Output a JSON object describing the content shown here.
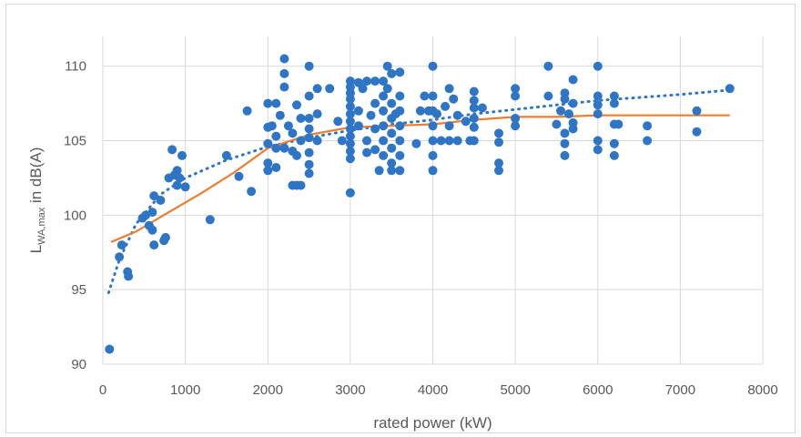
{
  "chart_data": {
    "type": "scatter",
    "xlabel": "rated power (kW)",
    "ylabel": {
      "main": "L",
      "sub": "WA,max",
      "suffix": " in dB(A)"
    },
    "xlim": [
      0,
      8000
    ],
    "ylim": [
      90,
      112
    ],
    "x_ticks": [
      0,
      1000,
      2000,
      3000,
      4000,
      5000,
      6000,
      7000,
      8000
    ],
    "y_ticks": [
      90,
      95,
      100,
      105,
      110
    ],
    "grid": true,
    "colors": {
      "points": "#2e75c6",
      "fit_line": "#ed7d31",
      "trend": "#2e75c6"
    },
    "series": [
      {
        "kind": "scatter",
        "points": [
          [
            80,
            91.0
          ],
          [
            200,
            97.2
          ],
          [
            230,
            98.0
          ],
          [
            300,
            96.2
          ],
          [
            310,
            95.9
          ],
          [
            480,
            99.8
          ],
          [
            520,
            100.0
          ],
          [
            560,
            99.3
          ],
          [
            600,
            100.2
          ],
          [
            600,
            99.0
          ],
          [
            620,
            98.0
          ],
          [
            620,
            101.3
          ],
          [
            700,
            101.0
          ],
          [
            740,
            98.3
          ],
          [
            760,
            98.5
          ],
          [
            800,
            102.5
          ],
          [
            840,
            104.4
          ],
          [
            870,
            102.7
          ],
          [
            900,
            103.0
          ],
          [
            900,
            102.0
          ],
          [
            930,
            102.5
          ],
          [
            960,
            104.0
          ],
          [
            1000,
            101.9
          ],
          [
            1300,
            99.7
          ],
          [
            1500,
            104.0
          ],
          [
            1650,
            102.6
          ],
          [
            1800,
            101.6
          ],
          [
            1750,
            107.0
          ],
          [
            2000,
            105.9
          ],
          [
            2000,
            104.8
          ],
          [
            2000,
            103.0
          ],
          [
            2000,
            103.5
          ],
          [
            2000,
            107.5
          ],
          [
            2050,
            106.0
          ],
          [
            2100,
            104.5
          ],
          [
            2100,
            105.3
          ],
          [
            2100,
            103.2
          ],
          [
            2100,
            107.5
          ],
          [
            2150,
            106.7
          ],
          [
            2200,
            110.5
          ],
          [
            2200,
            109.5
          ],
          [
            2200,
            108.6
          ],
          [
            2200,
            104.5
          ],
          [
            2250,
            106.0
          ],
          [
            2300,
            105.5
          ],
          [
            2300,
            104.3
          ],
          [
            2300,
            102.0
          ],
          [
            2350,
            102.0
          ],
          [
            2350,
            104.0
          ],
          [
            2350,
            107.4
          ],
          [
            2400,
            106.5
          ],
          [
            2400,
            105.0
          ],
          [
            2400,
            102.0
          ],
          [
            2500,
            110.0
          ],
          [
            2500,
            108.0
          ],
          [
            2500,
            106.5
          ],
          [
            2500,
            105.8
          ],
          [
            2500,
            105.2
          ],
          [
            2500,
            104.2
          ],
          [
            2500,
            103.4
          ],
          [
            2500,
            102.8
          ],
          [
            2600,
            108.5
          ],
          [
            2600,
            106.8
          ],
          [
            2600,
            105.0
          ],
          [
            2750,
            108.5
          ],
          [
            2900,
            105.0
          ],
          [
            2850,
            106.3
          ],
          [
            3000,
            109.0
          ],
          [
            3000,
            108.6
          ],
          [
            3000,
            108.2
          ],
          [
            3000,
            107.8
          ],
          [
            3000,
            107.3
          ],
          [
            3000,
            106.8
          ],
          [
            3000,
            106.3
          ],
          [
            3000,
            105.8
          ],
          [
            3000,
            105.3
          ],
          [
            3000,
            104.8
          ],
          [
            3000,
            104.3
          ],
          [
            3000,
            103.8
          ],
          [
            3000,
            101.5
          ],
          [
            3100,
            108.9
          ],
          [
            3100,
            107.0
          ],
          [
            3100,
            106.0
          ],
          [
            3150,
            108.5
          ],
          [
            3200,
            109.0
          ],
          [
            3200,
            105.0
          ],
          [
            3200,
            104.2
          ],
          [
            3250,
            106.7
          ],
          [
            3300,
            109.0
          ],
          [
            3300,
            107.5
          ],
          [
            3300,
            105.8
          ],
          [
            3300,
            104.4
          ],
          [
            3350,
            103.0
          ],
          [
            3400,
            109.0
          ],
          [
            3400,
            108.0
          ],
          [
            3400,
            107.0
          ],
          [
            3400,
            106.0
          ],
          [
            3400,
            105.0
          ],
          [
            3400,
            104.0
          ],
          [
            3450,
            110.0
          ],
          [
            3450,
            108.5
          ],
          [
            3500,
            107.5
          ],
          [
            3500,
            106.5
          ],
          [
            3500,
            105.5
          ],
          [
            3500,
            104.5
          ],
          [
            3500,
            103.5
          ],
          [
            3500,
            103.0
          ],
          [
            3500,
            109.5
          ],
          [
            3550,
            106.8
          ],
          [
            3600,
            109.6
          ],
          [
            3600,
            108.0
          ],
          [
            3600,
            107.0
          ],
          [
            3600,
            106.0
          ],
          [
            3600,
            105.0
          ],
          [
            3600,
            104.0
          ],
          [
            3600,
            103.0
          ],
          [
            3800,
            104.8
          ],
          [
            3850,
            107.0
          ],
          [
            3900,
            108.0
          ],
          [
            3950,
            107.0
          ],
          [
            4000,
            110.0
          ],
          [
            4000,
            108.0
          ],
          [
            4000,
            107.0
          ],
          [
            4000,
            106.0
          ],
          [
            4000,
            105.0
          ],
          [
            4000,
            104.0
          ],
          [
            4000,
            103.0
          ],
          [
            4050,
            106.8
          ],
          [
            4100,
            105.0
          ],
          [
            4150,
            107.3
          ],
          [
            4200,
            108.5
          ],
          [
            4200,
            106.0
          ],
          [
            4200,
            105.0
          ],
          [
            4250,
            107.8
          ],
          [
            4300,
            106.7
          ],
          [
            4300,
            105.0
          ],
          [
            4400,
            106.3
          ],
          [
            4450,
            105.0
          ],
          [
            4500,
            108.3
          ],
          [
            4500,
            107.7
          ],
          [
            4500,
            107.2
          ],
          [
            4500,
            106.5
          ],
          [
            4500,
            105.9
          ],
          [
            4500,
            105.0
          ],
          [
            4600,
            107.2
          ],
          [
            4800,
            105.5
          ],
          [
            4800,
            104.9
          ],
          [
            4800,
            103.5
          ],
          [
            4800,
            103.0
          ],
          [
            5000,
            108.5
          ],
          [
            5000,
            108.0
          ],
          [
            5000,
            106.5
          ],
          [
            5000,
            106.0
          ],
          [
            5400,
            110.0
          ],
          [
            5400,
            108.0
          ],
          [
            5500,
            106.1
          ],
          [
            5550,
            107.0
          ],
          [
            5600,
            108.2
          ],
          [
            5600,
            107.8
          ],
          [
            5600,
            105.5
          ],
          [
            5600,
            104.8
          ],
          [
            5600,
            104.0
          ],
          [
            5650,
            106.8
          ],
          [
            5700,
            109.1
          ],
          [
            5700,
            107.5
          ],
          [
            5700,
            106.2
          ],
          [
            5700,
            105.8
          ],
          [
            6000,
            110.0
          ],
          [
            6000,
            108.0
          ],
          [
            6000,
            107.4
          ],
          [
            6000,
            106.8
          ],
          [
            6000,
            105.0
          ],
          [
            6000,
            104.4
          ],
          [
            6200,
            108.0
          ],
          [
            6200,
            107.5
          ],
          [
            6200,
            106.1
          ],
          [
            6200,
            104.8
          ],
          [
            6200,
            104.0
          ],
          [
            6250,
            106.1
          ],
          [
            6600,
            106.0
          ],
          [
            6600,
            105.0
          ],
          [
            7200,
            107.0
          ],
          [
            7200,
            105.6
          ],
          [
            7600,
            108.5
          ]
        ]
      },
      {
        "kind": "fit_line",
        "points": [
          [
            100,
            98.2
          ],
          [
            400,
            98.9
          ],
          [
            800,
            100.2
          ],
          [
            1200,
            101.5
          ],
          [
            1600,
            102.9
          ],
          [
            2000,
            104.5
          ],
          [
            2500,
            105.4
          ],
          [
            3000,
            105.9
          ],
          [
            3500,
            106.0
          ],
          [
            4000,
            106.1
          ],
          [
            4500,
            106.4
          ],
          [
            5000,
            106.6
          ],
          [
            5500,
            106.6
          ],
          [
            6000,
            106.7
          ],
          [
            6500,
            106.7
          ],
          [
            7000,
            106.7
          ],
          [
            7600,
            106.7
          ]
        ]
      },
      {
        "kind": "trend",
        "points": [
          [
            70,
            94.8
          ],
          [
            200,
            97.0
          ],
          [
            400,
            99.4
          ],
          [
            700,
            101.4
          ],
          [
            1000,
            102.5
          ],
          [
            1500,
            103.7
          ],
          [
            2000,
            104.6
          ],
          [
            2500,
            105.2
          ],
          [
            3000,
            105.7
          ],
          [
            3500,
            106.1
          ],
          [
            4000,
            106.4
          ],
          [
            4500,
            106.8
          ],
          [
            5000,
            107.1
          ],
          [
            5500,
            107.4
          ],
          [
            6000,
            107.7
          ],
          [
            6500,
            107.9
          ],
          [
            7000,
            108.1
          ],
          [
            7600,
            108.4
          ]
        ]
      }
    ]
  }
}
